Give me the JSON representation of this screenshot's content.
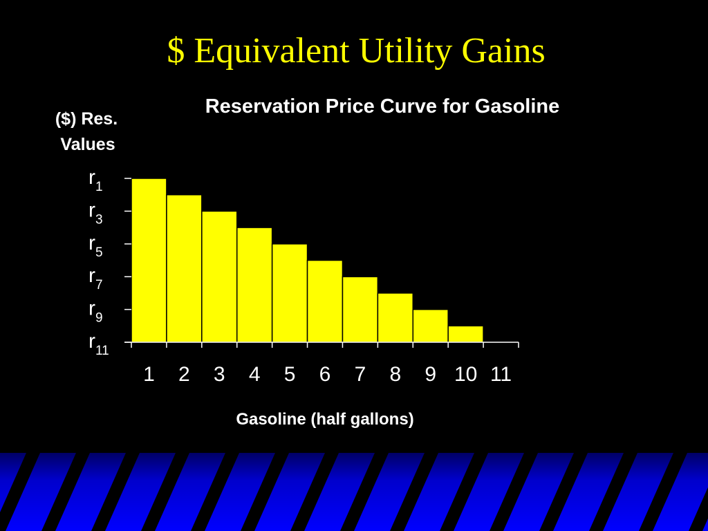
{
  "slide_title": "$ Equivalent Utility Gains",
  "chart_data": {
    "type": "bar",
    "title": "Reservation Price Curve for Gasoline",
    "y_label": [
      "($) Res.",
      "Values"
    ],
    "x_label": "Gasoline (half gallons)",
    "categories": [
      "1",
      "2",
      "3",
      "4",
      "5",
      "6",
      "7",
      "8",
      "9",
      "10",
      "11"
    ],
    "values": [
      10,
      9,
      8,
      7,
      6,
      5,
      4,
      3,
      2,
      1,
      0
    ],
    "color": "#ffff00",
    "ylim": [
      0,
      10
    ],
    "yticks": [
      {
        "value": 10,
        "label": "r",
        "subscript": "1"
      },
      {
        "value": 8,
        "label": "r",
        "subscript": "3"
      },
      {
        "value": 6,
        "label": "r",
        "subscript": "5"
      },
      {
        "value": 4,
        "label": "r",
        "subscript": "7"
      },
      {
        "value": 2,
        "label": "r",
        "subscript": "9"
      },
      {
        "value": 0,
        "label": "r",
        "subscript": "11"
      }
    ],
    "grid": false
  }
}
